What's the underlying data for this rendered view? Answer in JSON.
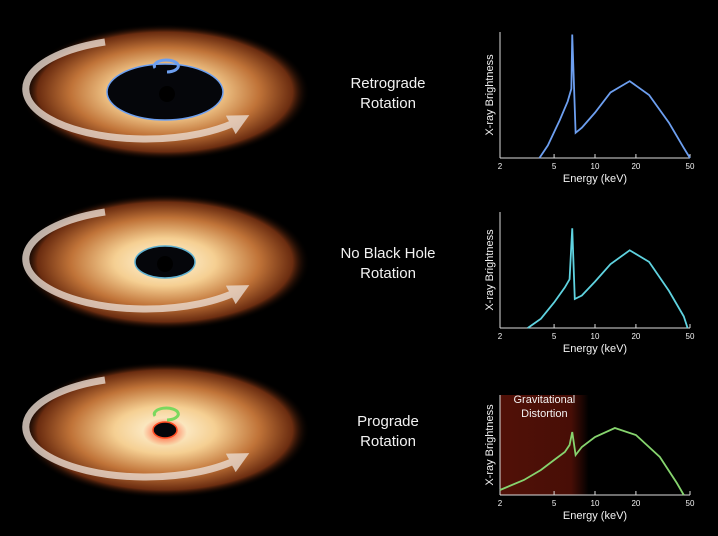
{
  "panels": [
    {
      "label": [
        "Retrograde",
        "Rotation"
      ]
    },
    {
      "label": [
        "No Black Hole",
        "Rotation"
      ]
    },
    {
      "label": [
        "Prograde",
        "Rotation"
      ]
    }
  ],
  "chart_data": [
    {
      "type": "line",
      "x_label": "Energy (keV)",
      "y_label": "X-ray Brightness",
      "xlim": [
        2,
        50
      ],
      "ylim": [
        0,
        100
      ],
      "xticks": [
        2,
        5,
        10,
        20,
        50
      ],
      "x_scale": "log",
      "x": [
        3.9,
        4.5,
        5.5,
        6.3,
        6.7,
        6.8,
        7.2,
        8,
        10,
        13,
        18,
        25,
        35,
        45,
        50
      ],
      "series": [
        {
          "color": "#6d9ff0",
          "values": [
            0,
            10,
            30,
            45,
            55,
            98,
            20,
            24,
            36,
            52,
            61,
            50,
            28,
            8,
            0
          ]
        }
      ]
    },
    {
      "type": "line",
      "x_label": "Energy (keV)",
      "y_label": "X-ray Brightness",
      "xlim": [
        2,
        50
      ],
      "ylim": [
        0,
        100
      ],
      "xticks": [
        2,
        5,
        10,
        20,
        50
      ],
      "x_scale": "log",
      "x": [
        3.2,
        4,
        5,
        6,
        6.5,
        6.8,
        7.1,
        8,
        10,
        13,
        18,
        25,
        35,
        45,
        48
      ],
      "series": [
        {
          "color": "#5fd3e0",
          "values": [
            0,
            8,
            22,
            35,
            42,
            86,
            25,
            28,
            40,
            55,
            67,
            57,
            32,
            10,
            0
          ]
        }
      ]
    },
    {
      "type": "line",
      "x_label": "Energy (keV)",
      "y_label": "X-ray Brightness",
      "xlim": [
        2,
        50
      ],
      "ylim": [
        0,
        100
      ],
      "xticks": [
        2,
        5,
        10,
        20,
        50
      ],
      "x_scale": "log",
      "x": [
        2,
        3,
        4,
        5,
        6,
        6.5,
        6.8,
        7.2,
        8,
        10,
        14,
        20,
        30,
        40,
        45
      ],
      "series": [
        {
          "color": "#86d46e",
          "values": [
            5,
            15,
            25,
            35,
            43,
            50,
            63,
            40,
            48,
            58,
            67,
            60,
            38,
            12,
            0
          ]
        }
      ],
      "shade": {
        "x": [
          2,
          9
        ],
        "color": "#5a1208",
        "label": [
          "Gravitational",
          "Distortion"
        ]
      }
    }
  ]
}
